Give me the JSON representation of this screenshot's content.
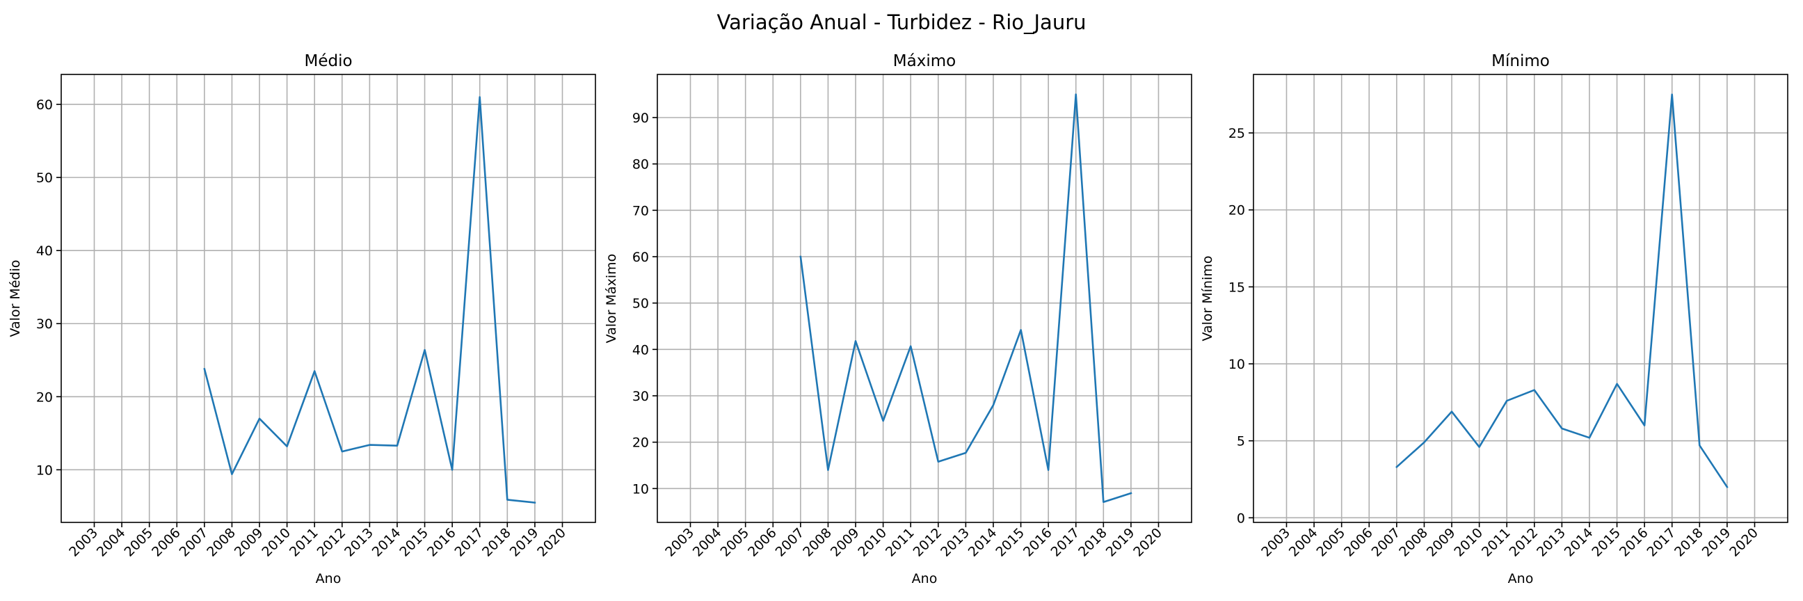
{
  "figure_title": "Variação Anual - Turbidez - Rio_Jauru",
  "colors": {
    "line": "#1f77b4",
    "grid": "#b0b0b0"
  },
  "chart_data": [
    {
      "type": "line",
      "title": "Médio",
      "xlabel": "Ano",
      "ylabel": "Valor Médio",
      "categories": [
        "2003",
        "2004",
        "2005",
        "2006",
        "2007",
        "2008",
        "2009",
        "2010",
        "2011",
        "2012",
        "2013",
        "2014",
        "2015",
        "2016",
        "2017",
        "2018",
        "2019",
        "2020"
      ],
      "series": [
        {
          "x": [
            2007,
            2008,
            2009,
            2010,
            2011,
            2012,
            2013,
            2014,
            2015,
            2016,
            2017,
            2018,
            2019
          ],
          "values": [
            23.8,
            9.4,
            17.0,
            13.2,
            23.5,
            12.5,
            13.4,
            13.3,
            26.4,
            10.0,
            61.0,
            5.9,
            5.5
          ]
        }
      ],
      "xlim": [
        2001.8,
        2021.2
      ],
      "ylim": [
        2.8,
        64.1
      ],
      "yticks": [
        10,
        20,
        30,
        40,
        50,
        60
      ],
      "grid": true
    },
    {
      "type": "line",
      "title": "Máximo",
      "xlabel": "Ano",
      "ylabel": "Valor Máximo",
      "categories": [
        "2003",
        "2004",
        "2005",
        "2006",
        "2007",
        "2008",
        "2009",
        "2010",
        "2011",
        "2012",
        "2013",
        "2014",
        "2015",
        "2016",
        "2017",
        "2018",
        "2019",
        "2020"
      ],
      "series": [
        {
          "x": [
            2007,
            2008,
            2009,
            2010,
            2011,
            2012,
            2013,
            2014,
            2015,
            2016,
            2017,
            2018,
            2019
          ],
          "values": [
            60.0,
            14.0,
            41.8,
            24.6,
            40.7,
            15.8,
            17.7,
            28.0,
            44.2,
            14.0,
            95.0,
            7.1,
            9.0
          ]
        }
      ],
      "xlim": [
        2001.8,
        2021.2
      ],
      "ylim": [
        2.7,
        99.3
      ],
      "yticks": [
        10,
        20,
        30,
        40,
        50,
        60,
        70,
        80,
        90
      ],
      "grid": true
    },
    {
      "type": "line",
      "title": "Mínimo",
      "xlabel": "Ano",
      "ylabel": "Valor Mínimo",
      "categories": [
        "2003",
        "2004",
        "2005",
        "2006",
        "2007",
        "2008",
        "2009",
        "2010",
        "2011",
        "2012",
        "2013",
        "2014",
        "2015",
        "2016",
        "2017",
        "2018",
        "2019",
        "2020"
      ],
      "series": [
        {
          "x": [
            2007,
            2008,
            2009,
            2010,
            2011,
            2012,
            2013,
            2014,
            2015,
            2016,
            2017,
            2018,
            2019
          ],
          "values": [
            3.3,
            4.9,
            6.9,
            4.6,
            7.6,
            8.3,
            5.8,
            5.2,
            8.7,
            6.0,
            27.5,
            4.7,
            2.0
          ]
        }
      ],
      "xlim": [
        2001.8,
        2021.2
      ],
      "ylim": [
        -0.3,
        28.8
      ],
      "yticks": [
        0,
        5,
        10,
        15,
        20,
        25
      ],
      "grid": true
    }
  ]
}
